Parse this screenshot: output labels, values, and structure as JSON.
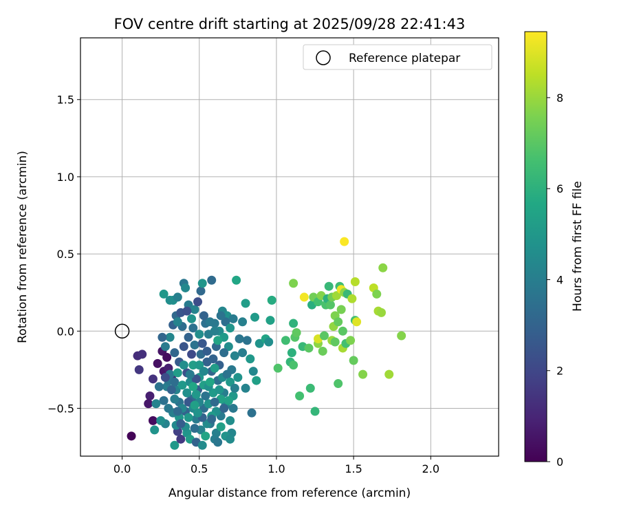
{
  "chart_data": {
    "type": "scatter",
    "title": "FOV centre drift starting at 2025/09/28 22:41:43",
    "xlabel": "Angular distance from reference (arcmin)",
    "ylabel": "Rotation from reference (arcmin)",
    "xlim": [
      -0.27,
      2.44
    ],
    "ylim": [
      -0.81,
      1.9
    ],
    "xticks": [
      0.0,
      0.5,
      1.0,
      1.5,
      2.0
    ],
    "yticks": [
      -0.5,
      0.0,
      0.5,
      1.0,
      1.5
    ],
    "xtick_labels": [
      "0.0",
      "0.5",
      "1.0",
      "1.5",
      "2.0"
    ],
    "ytick_labels": [
      "−0.5",
      "0.0",
      "0.5",
      "1.0",
      "1.5"
    ],
    "grid": true,
    "legend": {
      "position": "top-right",
      "label": "Reference platepar"
    },
    "reference_point": {
      "x": 0.0,
      "y": 0.0
    },
    "colorbar": {
      "label": "Hours from first FF file",
      "range": [
        0,
        9.45
      ],
      "ticks": [
        0,
        2,
        4,
        6,
        8
      ],
      "tick_labels": [
        "0",
        "2",
        "4",
        "6",
        "8"
      ],
      "colormap": "viridis"
    },
    "points": [
      [
        0.06,
        -0.68,
        0.1
      ],
      [
        0.2,
        -0.58,
        0.3
      ],
      [
        0.18,
        -0.42,
        0.8
      ],
      [
        0.17,
        -0.47,
        0.6
      ],
      [
        0.1,
        -0.16,
        1.2
      ],
      [
        0.13,
        -0.15,
        1.3
      ],
      [
        0.11,
        -0.25,
        1.5
      ],
      [
        0.2,
        -0.31,
        1.4
      ],
      [
        0.23,
        -0.21,
        0.4
      ],
      [
        0.27,
        -0.26,
        0.6
      ],
      [
        0.3,
        -0.24,
        0.8
      ],
      [
        0.26,
        -0.13,
        0.5
      ],
      [
        0.29,
        -0.17,
        0.3
      ],
      [
        0.32,
        -0.3,
        1.0
      ],
      [
        0.21,
        -0.64,
        4.8
      ],
      [
        0.28,
        -0.6,
        4.2
      ],
      [
        0.34,
        -0.74,
        5.0
      ],
      [
        0.36,
        -0.65,
        1.8
      ],
      [
        0.38,
        -0.7,
        1.6
      ],
      [
        0.42,
        -0.66,
        4.9
      ],
      [
        0.44,
        -0.7,
        5.2
      ],
      [
        0.48,
        -0.72,
        3.0
      ],
      [
        0.52,
        -0.74,
        4.5
      ],
      [
        0.27,
        -0.45,
        3.5
      ],
      [
        0.29,
        -0.36,
        4.0
      ],
      [
        0.31,
        -0.28,
        3.8
      ],
      [
        0.35,
        -0.38,
        4.2
      ],
      [
        0.37,
        -0.46,
        3.6
      ],
      [
        0.41,
        -0.52,
        3.0
      ],
      [
        0.45,
        -0.44,
        3.2
      ],
      [
        0.49,
        -0.38,
        2.8
      ],
      [
        0.53,
        -0.5,
        3.4
      ],
      [
        0.57,
        -0.6,
        3.7
      ],
      [
        0.61,
        -0.66,
        4.1
      ],
      [
        0.64,
        -0.55,
        3.9
      ],
      [
        0.67,
        -0.48,
        4.4
      ],
      [
        0.7,
        -0.58,
        4.6
      ],
      [
        0.71,
        -0.66,
        4.3
      ],
      [
        0.66,
        -0.4,
        4.0
      ],
      [
        0.62,
        -0.32,
        3.5
      ],
      [
        0.58,
        -0.26,
        3.1
      ],
      [
        0.55,
        -0.2,
        2.9
      ],
      [
        0.51,
        -0.15,
        3.3
      ],
      [
        0.47,
        -0.09,
        3.6
      ],
      [
        0.43,
        -0.04,
        3.0
      ],
      [
        0.39,
        0.03,
        3.4
      ],
      [
        0.35,
        0.1,
        3.2
      ],
      [
        0.33,
        0.2,
        4.7
      ],
      [
        0.27,
        0.24,
        5.0
      ],
      [
        0.31,
        0.2,
        4.6
      ],
      [
        0.36,
        0.22,
        4.1
      ],
      [
        0.4,
        0.31,
        3.7
      ],
      [
        0.41,
        0.28,
        4.4
      ],
      [
        0.43,
        0.17,
        3.9
      ],
      [
        0.45,
        0.08,
        4.8
      ],
      [
        0.47,
        0.14,
        4.2
      ],
      [
        0.49,
        0.19,
        2.2
      ],
      [
        0.51,
        0.26,
        3.2
      ],
      [
        0.52,
        0.31,
        4.9
      ],
      [
        0.58,
        0.33,
        3.3
      ],
      [
        0.54,
        0.05,
        3.5
      ],
      [
        0.56,
        -0.02,
        4.0
      ],
      [
        0.6,
        0.05,
        3.8
      ],
      [
        0.63,
        0.0,
        4.5
      ],
      [
        0.65,
        0.13,
        4.3
      ],
      [
        0.68,
        0.1,
        4.7
      ],
      [
        0.72,
        0.08,
        3.9
      ],
      [
        0.74,
        0.33,
        5.6
      ],
      [
        0.78,
        0.06,
        4.1
      ],
      [
        0.8,
        0.18,
        5.2
      ],
      [
        0.66,
        -0.04,
        5.1
      ],
      [
        0.69,
        -0.1,
        4.6
      ],
      [
        0.73,
        -0.16,
        4.2
      ],
      [
        0.76,
        -0.05,
        3.7
      ],
      [
        0.78,
        -0.14,
        4.0
      ],
      [
        0.81,
        -0.06,
        3.6
      ],
      [
        0.83,
        -0.18,
        5.0
      ],
      [
        0.85,
        -0.26,
        4.4
      ],
      [
        0.87,
        -0.32,
        5.3
      ],
      [
        0.89,
        -0.08,
        4.8
      ],
      [
        0.93,
        -0.05,
        5.5
      ],
      [
        0.96,
        0.07,
        5.4
      ],
      [
        0.97,
        0.2,
        5.8
      ],
      [
        0.95,
        -0.07,
        4.6
      ],
      [
        0.86,
        0.09,
        5.1
      ],
      [
        0.84,
        -0.53,
        3.5
      ],
      [
        0.8,
        -0.37,
        4.2
      ],
      [
        0.75,
        -0.3,
        4.8
      ],
      [
        0.71,
        -0.25,
        3.8
      ],
      [
        0.72,
        -0.42,
        5.0
      ],
      [
        0.65,
        -0.3,
        4.5
      ],
      [
        0.59,
        -0.4,
        5.1
      ],
      [
        0.56,
        -0.47,
        4.8
      ],
      [
        0.53,
        -0.35,
        5.3
      ],
      [
        0.5,
        -0.3,
        4.9
      ],
      [
        0.46,
        -0.22,
        5.2
      ],
      [
        0.44,
        -0.33,
        4.5
      ],
      [
        0.42,
        -0.4,
        4.7
      ],
      [
        0.39,
        -0.5,
        4.3
      ],
      [
        0.37,
        -0.56,
        4.9
      ],
      [
        0.35,
        -0.61,
        4.4
      ],
      [
        0.33,
        -0.53,
        4.1
      ],
      [
        0.3,
        -0.5,
        3.8
      ],
      [
        0.25,
        -0.58,
        4.6
      ],
      [
        0.22,
        -0.47,
        4.2
      ],
      [
        0.24,
        -0.36,
        3.6
      ],
      [
        0.28,
        -0.1,
        3.9
      ],
      [
        0.31,
        -0.04,
        4.3
      ],
      [
        0.34,
        -0.14,
        3.1
      ],
      [
        0.37,
        -0.2,
        2.7
      ],
      [
        0.4,
        -0.1,
        2.5
      ],
      [
        0.42,
        -0.27,
        2.3
      ],
      [
        0.45,
        -0.15,
        2.1
      ],
      [
        0.48,
        -0.31,
        2.4
      ],
      [
        0.52,
        -0.08,
        2.6
      ],
      [
        0.55,
        -0.13,
        2.8
      ],
      [
        0.59,
        -0.18,
        3.0
      ],
      [
        0.61,
        -0.1,
        3.2
      ],
      [
        0.63,
        -0.22,
        2.9
      ],
      [
        0.66,
        -0.14,
        3.4
      ],
      [
        0.68,
        -0.28,
        3.6
      ],
      [
        0.7,
        -0.33,
        5.0
      ],
      [
        0.73,
        -0.37,
        4.1
      ],
      [
        0.64,
        -0.44,
        5.4
      ],
      [
        0.61,
        -0.52,
        4.7
      ],
      [
        0.58,
        -0.55,
        5.1
      ],
      [
        0.55,
        -0.6,
        4.5
      ],
      [
        0.51,
        -0.64,
        4.2
      ],
      [
        0.48,
        -0.57,
        3.9
      ],
      [
        0.46,
        -0.5,
        4.4
      ],
      [
        0.43,
        -0.56,
        5.0
      ],
      [
        0.41,
        -0.62,
        4.6
      ],
      [
        0.38,
        -0.6,
        2.8
      ],
      [
        0.36,
        -0.52,
        3.3
      ],
      [
        0.34,
        -0.44,
        4.0
      ],
      [
        0.32,
        -0.38,
        3.0
      ],
      [
        0.3,
        -0.32,
        3.7
      ],
      [
        0.28,
        -0.3,
        2.2
      ],
      [
        0.26,
        -0.04,
        3.1
      ],
      [
        0.33,
        0.04,
        2.9
      ],
      [
        0.36,
        0.06,
        4.2
      ],
      [
        0.38,
        0.12,
        2.5
      ],
      [
        0.42,
        0.13,
        2.3
      ],
      [
        0.46,
        0.02,
        3.5
      ],
      [
        0.5,
        -0.02,
        4.6
      ],
      [
        0.53,
        0.1,
        3.0
      ],
      [
        0.57,
        0.06,
        3.8
      ],
      [
        0.6,
        0.0,
        4.1
      ],
      [
        0.62,
        -0.06,
        5.5
      ],
      [
        0.67,
        0.06,
        3.4
      ],
      [
        0.7,
        0.02,
        4.9
      ],
      [
        0.64,
        0.1,
        3.6
      ],
      [
        0.47,
        -0.63,
        3.4
      ],
      [
        0.54,
        -0.68,
        5.5
      ],
      [
        0.6,
        -0.7,
        4.0
      ],
      [
        0.64,
        -0.62,
        5.3
      ],
      [
        0.67,
        -0.68,
        4.8
      ],
      [
        0.7,
        -0.7,
        4.5
      ],
      [
        0.62,
        -0.72,
        3.7
      ],
      [
        0.58,
        -0.57,
        3.2
      ],
      [
        0.54,
        -0.42,
        3.6
      ],
      [
        0.5,
        -0.46,
        4.3
      ],
      [
        0.48,
        -0.41,
        5.0
      ],
      [
        0.44,
        -0.28,
        3.9
      ],
      [
        0.4,
        -0.22,
        4.6
      ],
      [
        0.36,
        -0.27,
        5.2
      ],
      [
        0.34,
        -0.33,
        3.4
      ],
      [
        0.39,
        -0.35,
        5.0
      ],
      [
        0.43,
        -0.46,
        2.6
      ],
      [
        0.47,
        -0.48,
        5.3
      ],
      [
        0.52,
        -0.56,
        3.0
      ],
      [
        0.56,
        -0.36,
        4.7
      ],
      [
        0.6,
        -0.46,
        3.3
      ],
      [
        0.63,
        -0.38,
        4.9
      ],
      [
        0.66,
        -0.5,
        3.1
      ],
      [
        0.69,
        -0.45,
        5.4
      ],
      [
        0.72,
        -0.5,
        3.8
      ],
      [
        0.5,
        -0.22,
        5.0
      ],
      [
        0.53,
        -0.26,
        4.4
      ],
      [
        0.57,
        -0.33,
        5.6
      ],
      [
        0.6,
        -0.24,
        5.2
      ],
      [
        0.46,
        -0.36,
        5.6
      ],
      [
        0.49,
        -0.53,
        4.8
      ],
      [
        1.01,
        -0.24,
        6.8
      ],
      [
        1.06,
        -0.06,
        6.5
      ],
      [
        1.09,
        -0.2,
        6.2
      ],
      [
        1.1,
        -0.14,
        6.0
      ],
      [
        1.11,
        -0.22,
        6.7
      ],
      [
        1.12,
        -0.04,
        6.9
      ],
      [
        1.13,
        -0.01,
        7.1
      ],
      [
        1.11,
        0.05,
        6.1
      ],
      [
        1.11,
        0.31,
        7.6
      ],
      [
        1.15,
        -0.42,
        6.6
      ],
      [
        1.17,
        -0.1,
        6.3
      ],
      [
        1.18,
        0.22,
        9.3
      ],
      [
        1.21,
        -0.11,
        7.0
      ],
      [
        1.22,
        -0.37,
        6.4
      ],
      [
        1.23,
        0.17,
        5.9
      ],
      [
        1.24,
        0.22,
        7.4
      ],
      [
        1.25,
        -0.52,
        6.2
      ],
      [
        1.27,
        -0.08,
        7.8
      ],
      [
        1.27,
        0.19,
        6.6
      ],
      [
        1.27,
        -0.05,
        8.9
      ],
      [
        1.29,
        0.23,
        7.7
      ],
      [
        1.3,
        -0.13,
        7.3
      ],
      [
        1.31,
        -0.03,
        7.0
      ],
      [
        1.32,
        0.17,
        6.7
      ],
      [
        1.33,
        0.21,
        6.0
      ],
      [
        1.34,
        0.29,
        6.3
      ],
      [
        1.35,
        0.17,
        6.9
      ],
      [
        1.36,
        -0.06,
        8.0
      ],
      [
        1.36,
        0.22,
        7.4
      ],
      [
        1.37,
        0.03,
        7.9
      ],
      [
        1.38,
        -0.07,
        7.1
      ],
      [
        1.38,
        0.1,
        7.6
      ],
      [
        1.39,
        0.23,
        8.1
      ],
      [
        1.4,
        -0.34,
        6.8
      ],
      [
        1.4,
        0.06,
        7.2
      ],
      [
        1.41,
        0.29,
        6.5
      ],
      [
        1.42,
        0.14,
        7.5
      ],
      [
        1.42,
        0.27,
        9.2
      ],
      [
        1.43,
        -0.11,
        8.2
      ],
      [
        1.43,
        0.0,
        7.0
      ],
      [
        1.44,
        0.25,
        7.8
      ],
      [
        1.44,
        0.58,
        9.4
      ],
      [
        1.45,
        -0.08,
        6.6
      ],
      [
        1.46,
        0.24,
        6.3
      ],
      [
        1.48,
        -0.06,
        7.6
      ],
      [
        1.49,
        0.21,
        8.3
      ],
      [
        1.5,
        -0.19,
        7.2
      ],
      [
        1.51,
        0.07,
        6.6
      ],
      [
        1.51,
        0.32,
        8.4
      ],
      [
        1.52,
        0.06,
        9.0
      ],
      [
        1.56,
        -0.28,
        7.7
      ],
      [
        1.63,
        0.28,
        8.5
      ],
      [
        1.65,
        0.24,
        7.6
      ],
      [
        1.66,
        0.13,
        8.2
      ],
      [
        1.68,
        0.12,
        8.0
      ],
      [
        1.69,
        0.41,
        7.8
      ],
      [
        1.73,
        -0.28,
        8.1
      ],
      [
        1.81,
        -0.03,
        7.7
      ]
    ]
  }
}
